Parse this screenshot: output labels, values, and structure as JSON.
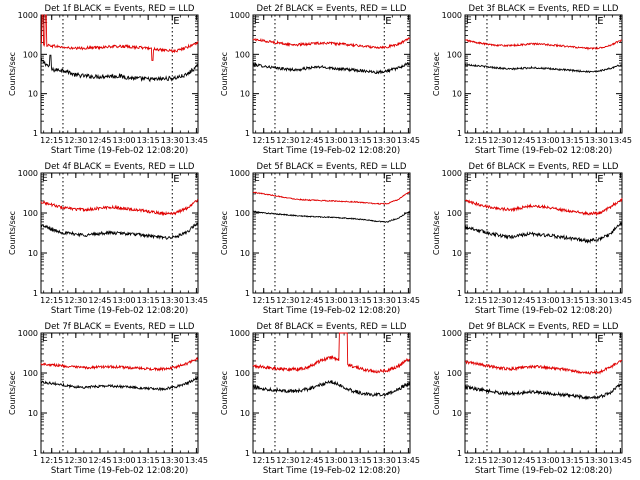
{
  "figure": {
    "background": "#ffffff",
    "colors": {
      "events": "#000000",
      "lld": "#e00000",
      "axis": "#000000"
    }
  },
  "chart_data": [
    {
      "type": "line",
      "title": "Det 1f BLACK = Events, RED = LLD",
      "xlabel": "Start Time (19-Feb-02 12:08:20)",
      "ylabel": "Counts/sec",
      "x_ticks": [
        "12:15",
        "12:30",
        "12:45",
        "13:00",
        "13:15",
        "13:30",
        "13:45"
      ],
      "y_ticks": [
        "1",
        "10",
        "100",
        "1000"
      ],
      "ylim": [
        1,
        1000
      ],
      "yscale": "log",
      "xlim": [
        "12:08:20",
        "13:46:00"
      ],
      "vlines": [
        "12:22",
        "13:30"
      ],
      "markers": [
        {
          "text": "E",
          "at": "13:30"
        }
      ],
      "series": [
        {
          "role": "events",
          "color": "#000000",
          "base": [
            70,
            40,
            40,
            30,
            28,
            27,
            28,
            28,
            25,
            24,
            23,
            24,
            25,
            30,
            50
          ],
          "noise": 0.12,
          "spikes": [
            {
              "t": 0.06,
              "v": 95
            }
          ]
        },
        {
          "role": "lld",
          "color": "#e00000",
          "base": [
            180,
            165,
            150,
            140,
            145,
            150,
            155,
            160,
            155,
            148,
            140,
            125,
            120,
            150,
            200
          ],
          "noise": 0.08,
          "spikes": [
            {
              "t": 0.01,
              "v": 1000
            },
            {
              "t": 0.03,
              "v": 1000
            },
            {
              "t": 0.71,
              "v": 70
            }
          ]
        }
      ]
    },
    {
      "type": "line",
      "title": "Det 2f BLACK = Events, RED = LLD",
      "xlabel": "Start Time (19-Feb-02 12:08:20)",
      "ylabel": "Counts/sec",
      "x_ticks": [
        "12:15",
        "12:30",
        "12:45",
        "13:00",
        "13:15",
        "13:30",
        "13:45"
      ],
      "y_ticks": [
        "1",
        "10",
        "100",
        "1000"
      ],
      "ylim": [
        1,
        1000
      ],
      "yscale": "log",
      "xlim": [
        "12:08:20",
        "13:46:00"
      ],
      "vlines": [
        "12:22",
        "13:30"
      ],
      "markers": [
        {
          "text": "E",
          "at": "13:30"
        }
      ],
      "series": [
        {
          "role": "events",
          "color": "#000000",
          "base": [
            55,
            50,
            45,
            42,
            40,
            45,
            48,
            45,
            42,
            40,
            38,
            35,
            38,
            45,
            60
          ],
          "noise": 0.08
        },
        {
          "role": "lld",
          "color": "#e00000",
          "base": [
            240,
            220,
            200,
            180,
            175,
            185,
            195,
            190,
            180,
            170,
            160,
            150,
            155,
            180,
            260
          ],
          "noise": 0.07
        }
      ]
    },
    {
      "type": "line",
      "title": "Det 3f BLACK = Events, RED = LLD",
      "xlabel": "Start Time (19-Feb-02 12:08:20)",
      "ylabel": "Counts/sec",
      "x_ticks": [
        "12:15",
        "12:30",
        "12:45",
        "13:00",
        "13:15",
        "13:30",
        "13:45"
      ],
      "y_ticks": [
        "1",
        "10",
        "100",
        "1000"
      ],
      "ylim": [
        1,
        1000
      ],
      "yscale": "log",
      "xlim": [
        "12:08:20",
        "13:46:00"
      ],
      "vlines": [
        "12:22",
        "13:30"
      ],
      "markers": [
        {
          "text": "E",
          "at": "13:30"
        }
      ],
      "series": [
        {
          "role": "events",
          "color": "#000000",
          "base": [
            55,
            52,
            48,
            45,
            42,
            44,
            46,
            44,
            42,
            40,
            38,
            36,
            38,
            44,
            55
          ],
          "noise": 0.05
        },
        {
          "role": "lld",
          "color": "#e00000",
          "base": [
            230,
            200,
            180,
            170,
            165,
            175,
            185,
            180,
            170,
            160,
            150,
            140,
            145,
            170,
            230
          ],
          "noise": 0.05
        }
      ]
    },
    {
      "type": "line",
      "title": "Det 4f BLACK = Events, RED = LLD",
      "xlabel": "Start Time (19-Feb-02 12:08:20)",
      "ylabel": "Counts/sec",
      "x_ticks": [
        "12:15",
        "12:30",
        "12:45",
        "13:00",
        "13:15",
        "13:30",
        "13:45"
      ],
      "y_ticks": [
        "1",
        "10",
        "100",
        "1000"
      ],
      "ylim": [
        1,
        1000
      ],
      "yscale": "log",
      "xlim": [
        "12:08:20",
        "13:46:00"
      ],
      "vlines": [
        "12:22",
        "13:30"
      ],
      "markers": [
        {
          "text": "E",
          "at": "13:30"
        }
      ],
      "series": [
        {
          "role": "events",
          "color": "#000000",
          "base": [
            50,
            38,
            32,
            30,
            28,
            30,
            32,
            31,
            30,
            28,
            26,
            24,
            25,
            32,
            55
          ],
          "noise": 0.09
        },
        {
          "role": "lld",
          "color": "#e00000",
          "base": [
            190,
            160,
            135,
            125,
            120,
            130,
            140,
            135,
            125,
            115,
            105,
            95,
            100,
            130,
            210
          ],
          "noise": 0.08
        }
      ]
    },
    {
      "type": "line",
      "title": "Det 5f BLACK = Events, RED = LLD",
      "xlabel": "Start Time (19-Feb-02 12:08:20)",
      "ylabel": "Counts/sec",
      "x_ticks": [
        "12:15",
        "12:30",
        "12:45",
        "13:00",
        "13:15",
        "13:30",
        "13:45"
      ],
      "y_ticks": [
        "1",
        "10",
        "100",
        "1000"
      ],
      "ylim": [
        1,
        1000
      ],
      "yscale": "log",
      "xlim": [
        "12:08:20",
        "13:46:00"
      ],
      "vlines": [
        "12:22",
        "13:30"
      ],
      "markers": [
        {
          "text": "E",
          "at": "13:30"
        }
      ],
      "series": [
        {
          "role": "events",
          "color": "#000000",
          "base": [
            110,
            100,
            95,
            90,
            85,
            82,
            80,
            78,
            75,
            72,
            68,
            62,
            60,
            75,
            110
          ],
          "noise": 0.03
        },
        {
          "role": "lld",
          "color": "#e00000",
          "base": [
            330,
            300,
            270,
            240,
            220,
            210,
            205,
            200,
            195,
            190,
            180,
            170,
            170,
            220,
            340
          ],
          "noise": 0.03
        }
      ]
    },
    {
      "type": "line",
      "title": "Det 6f BLACK = Events, RED = LLD",
      "xlabel": "Start Time (19-Feb-02 12:08:20)",
      "ylabel": "Counts/sec",
      "x_ticks": [
        "12:15",
        "12:30",
        "12:45",
        "13:00",
        "13:15",
        "13:30",
        "13:45"
      ],
      "y_ticks": [
        "1",
        "10",
        "100",
        "1000"
      ],
      "ylim": [
        1,
        1000
      ],
      "yscale": "log",
      "xlim": [
        "12:08:20",
        "13:46:00"
      ],
      "vlines": [
        "12:22",
        "13:30"
      ],
      "markers": [
        {
          "text": "E",
          "at": "13:30"
        }
      ],
      "series": [
        {
          "role": "events",
          "color": "#000000",
          "base": [
            45,
            38,
            32,
            28,
            25,
            28,
            30,
            28,
            26,
            24,
            22,
            20,
            22,
            30,
            55
          ],
          "noise": 0.1
        },
        {
          "role": "lld",
          "color": "#e00000",
          "base": [
            200,
            170,
            145,
            130,
            120,
            135,
            150,
            145,
            130,
            115,
            105,
            95,
            100,
            140,
            220
          ],
          "noise": 0.08
        }
      ]
    },
    {
      "type": "line",
      "title": "Det 7f BLACK = Events, RED = LLD",
      "xlabel": "Start Time (19-Feb-02 12:08:20)",
      "ylabel": "Counts/sec",
      "x_ticks": [
        "12:15",
        "12:30",
        "12:45",
        "13:00",
        "13:15",
        "13:30",
        "13:45"
      ],
      "y_ticks": [
        "1",
        "10",
        "100",
        "1000"
      ],
      "ylim": [
        1,
        1000
      ],
      "yscale": "log",
      "xlim": [
        "12:08:20",
        "13:46:00"
      ],
      "vlines": [
        "12:22",
        "13:30"
      ],
      "markers": [
        {
          "text": "E",
          "at": "13:30"
        }
      ],
      "series": [
        {
          "role": "events",
          "color": "#000000",
          "base": [
            60,
            55,
            50,
            45,
            44,
            46,
            48,
            46,
            44,
            42,
            40,
            40,
            45,
            55,
            75
          ],
          "noise": 0.07
        },
        {
          "role": "lld",
          "color": "#e00000",
          "base": [
            170,
            160,
            150,
            140,
            135,
            140,
            145,
            140,
            135,
            130,
            125,
            125,
            140,
            170,
            230
          ],
          "noise": 0.07
        }
      ]
    },
    {
      "type": "line",
      "title": "Det 8f BLACK = Events, RED = LLD",
      "xlabel": "Start Time (19-Feb-02 12:08:20)",
      "ylabel": "Counts/sec",
      "x_ticks": [
        "12:15",
        "12:30",
        "12:45",
        "13:00",
        "13:15",
        "13:30",
        "13:45"
      ],
      "y_ticks": [
        "1",
        "10",
        "100",
        "1000"
      ],
      "ylim": [
        1,
        1000
      ],
      "yscale": "log",
      "xlim": [
        "12:08:20",
        "13:46:00"
      ],
      "vlines": [
        "12:22",
        "13:30"
      ],
      "markers": [
        {
          "text": "E",
          "at": "13:30"
        }
      ],
      "series": [
        {
          "role": "events",
          "color": "#000000",
          "base": [
            45,
            40,
            38,
            36,
            35,
            40,
            50,
            60,
            45,
            35,
            30,
            28,
            30,
            40,
            55
          ],
          "noise": 0.1
        },
        {
          "role": "lld",
          "color": "#e00000",
          "base": [
            150,
            140,
            130,
            125,
            125,
            140,
            200,
            250,
            180,
            140,
            120,
            110,
            115,
            150,
            230
          ],
          "noise": 0.09,
          "plateau": [
            0.55,
            0.6,
            1000
          ]
        }
      ]
    },
    {
      "type": "line",
      "title": "Det 9f BLACK = Events, RED = LLD",
      "xlabel": "Start Time (19-Feb-02 12:08:20)",
      "ylabel": "Counts/sec",
      "x_ticks": [
        "12:15",
        "12:30",
        "12:45",
        "13:00",
        "13:15",
        "13:30",
        "13:45"
      ],
      "y_ticks": [
        "1",
        "10",
        "100",
        "1000"
      ],
      "ylim": [
        1,
        1000
      ],
      "yscale": "log",
      "xlim": [
        "12:08:20",
        "13:46:00"
      ],
      "vlines": [
        "12:22",
        "13:30"
      ],
      "markers": [
        {
          "text": "E",
          "at": "13:30"
        }
      ],
      "series": [
        {
          "role": "events",
          "color": "#000000",
          "base": [
            45,
            40,
            36,
            32,
            30,
            32,
            34,
            32,
            30,
            28,
            26,
            24,
            25,
            32,
            55
          ],
          "noise": 0.09
        },
        {
          "role": "lld",
          "color": "#e00000",
          "base": [
            190,
            170,
            150,
            135,
            125,
            135,
            145,
            140,
            130,
            120,
            110,
            100,
            105,
            140,
            210
          ],
          "noise": 0.08
        }
      ]
    }
  ]
}
